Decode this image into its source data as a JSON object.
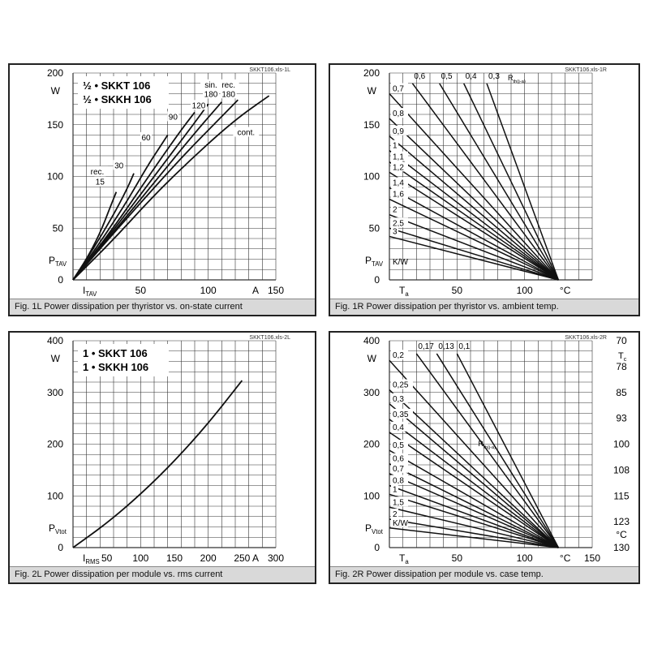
{
  "chart_data": [
    {
      "type": "line",
      "file_id": "SKKT106.xls-1L",
      "caption": "Fig. 1L Power dissipation per thyristor vs. on-state current",
      "device_labels": [
        "½ • SKKT 106",
        "½ • SKKH 106"
      ],
      "xlabel_main": "I",
      "xlabel_sub": "TAV",
      "ylabel_main": "P",
      "ylabel_sub": "TAV",
      "unit_x": "A",
      "unit_y": "W",
      "xlim": [
        0,
        150
      ],
      "ylim": [
        0,
        200
      ],
      "x_ticks": [
        50,
        100,
        150
      ],
      "y_ticks": [
        50,
        100,
        150,
        200
      ],
      "series": [
        {
          "name": "rec. 15",
          "points": [
            [
              0,
              0
            ],
            [
              10,
              20
            ],
            [
              20,
              45
            ],
            [
              28,
              72
            ],
            [
              32,
              85
            ]
          ]
        },
        {
          "name": "30",
          "points": [
            [
              0,
              0
            ],
            [
              15,
              30
            ],
            [
              30,
              63
            ],
            [
              40,
              88
            ],
            [
              45,
              103
            ]
          ]
        },
        {
          "name": "60",
          "points": [
            [
              0,
              0
            ],
            [
              20,
              36
            ],
            [
              40,
              76
            ],
            [
              55,
              110
            ],
            [
              65,
              130
            ],
            [
              70,
              140
            ]
          ]
        },
        {
          "name": "90",
          "points": [
            [
              0,
              0
            ],
            [
              30,
              50
            ],
            [
              60,
              108
            ],
            [
              80,
              145
            ],
            [
              90,
              162
            ]
          ]
        },
        {
          "name": "120",
          "points": [
            [
              0,
              0
            ],
            [
              30,
              48
            ],
            [
              60,
              100
            ],
            [
              90,
              152
            ],
            [
              100,
              170
            ]
          ]
        },
        {
          "name": "sin. 180",
          "points": [
            [
              0,
              0
            ],
            [
              30,
              46
            ],
            [
              60,
              94
            ],
            [
              90,
              142
            ],
            [
              110,
              172
            ]
          ]
        },
        {
          "name": "rec. 180",
          "points": [
            [
              0,
              0
            ],
            [
              40,
              60
            ],
            [
              80,
              118
            ],
            [
              110,
              158
            ],
            [
              122,
              174
            ]
          ]
        },
        {
          "name": "cont.",
          "points": [
            [
              0,
              0
            ],
            [
              30,
              39
            ],
            [
              60,
              82
            ],
            [
              90,
              120
            ],
            [
              120,
              155
            ],
            [
              145,
              178
            ]
          ]
        }
      ],
      "annotations": [
        {
          "text": "rec.",
          "at": [
            18,
            102
          ]
        },
        {
          "text": "15",
          "at": [
            20,
            92
          ]
        },
        {
          "text": "30",
          "at": [
            34,
            108
          ]
        },
        {
          "text": "60",
          "at": [
            54,
            135
          ]
        },
        {
          "text": "90",
          "at": [
            74,
            155
          ]
        },
        {
          "text": "120",
          "at": [
            93,
            166
          ]
        },
        {
          "text": "sin.",
          "at": [
            102,
            186
          ]
        },
        {
          "text": "180",
          "at": [
            102,
            177
          ]
        },
        {
          "text": "rec.",
          "at": [
            115,
            186
          ]
        },
        {
          "text": "180",
          "at": [
            115,
            177
          ]
        },
        {
          "text": "cont.",
          "at": [
            128,
            140
          ]
        }
      ]
    },
    {
      "type": "line",
      "file_id": "SKKT106.xls-1R",
      "caption": "Fig. 1R Power dissipation per thyristor vs. ambient temp.",
      "xlabel_main": "T",
      "xlabel_sub": "a",
      "ylabel_main": "P",
      "ylabel_sub": "TAV",
      "unit_x": "°C",
      "unit_y": "W",
      "rth_label_main": "R",
      "rth_label_sub": "th(j-a)",
      "rth_unit": "K/W",
      "xlim": [
        0,
        150
      ],
      "ylim": [
        0,
        200
      ],
      "x_ticks": [
        50,
        100
      ],
      "y_ticks": [
        50,
        100,
        150,
        200
      ],
      "convergence": [
        125,
        0
      ],
      "series": [
        {
          "name": "0,3",
          "start": [
            72,
            190
          ]
        },
        {
          "name": "0,4",
          "start": [
            55,
            190
          ]
        },
        {
          "name": "0,5",
          "start": [
            37,
            190
          ]
        },
        {
          "name": "0,6",
          "start": [
            17,
            190
          ]
        },
        {
          "name": "0,7",
          "start": [
            0,
            180
          ]
        },
        {
          "name": "0,8",
          "start": [
            0,
            156
          ]
        },
        {
          "name": "0,9",
          "start": [
            0,
            139
          ]
        },
        {
          "name": "1",
          "start": [
            0,
            125
          ]
        },
        {
          "name": "1,1",
          "start": [
            0,
            114
          ]
        },
        {
          "name": "1,2",
          "start": [
            0,
            104
          ]
        },
        {
          "name": "1,4",
          "start": [
            0,
            89
          ]
        },
        {
          "name": "1,6",
          "start": [
            0,
            78
          ]
        },
        {
          "name": "2",
          "start": [
            0,
            63
          ]
        },
        {
          "name": "2,5",
          "start": [
            0,
            50
          ]
        },
        {
          "name": "3",
          "start": [
            0,
            42
          ]
        }
      ]
    },
    {
      "type": "line",
      "file_id": "SKKT106.xls-2L",
      "caption": "Fig. 2L Power dissipation per module vs. rms current",
      "device_labels": [
        "1 • SKKT 106",
        "1 • SKKH 106"
      ],
      "xlabel_main": "I",
      "xlabel_sub": "RMS",
      "ylabel_main": "P",
      "ylabel_sub": "Vtot",
      "unit_x": "A",
      "unit_y": "W",
      "xlim": [
        0,
        300
      ],
      "ylim": [
        0,
        400
      ],
      "x_ticks": [
        50,
        100,
        150,
        200,
        250,
        300
      ],
      "y_ticks": [
        100,
        200,
        300,
        400
      ],
      "series": [
        {
          "name": "",
          "points": [
            [
              0,
              0
            ],
            [
              50,
              47
            ],
            [
              100,
              103
            ],
            [
              150,
              167
            ],
            [
              200,
              240
            ],
            [
              250,
              323
            ]
          ]
        }
      ]
    },
    {
      "type": "line",
      "file_id": "SKKT106.xls-2R",
      "caption": "Fig. 2R Power dissipation per module vs. case temp.",
      "xlabel_main": "T",
      "xlabel_sub": "a",
      "ylabel_main": "P",
      "ylabel_sub": "Vtot",
      "unit_x": "°C",
      "unit_y": "W",
      "rth_label_main": "R",
      "rth_label_sub": "th(j-a)",
      "rth_unit": "K/W",
      "right_label_main": "T",
      "right_label_sub": "c",
      "right_unit": "°C",
      "right_ticks": [
        "70",
        "78",
        "85",
        "93",
        "100",
        "108",
        "115",
        "123",
        "130"
      ],
      "xlim": [
        0,
        150
      ],
      "ylim": [
        0,
        400
      ],
      "x_ticks": [
        50,
        100,
        150
      ],
      "y_ticks": [
        100,
        200,
        300,
        400
      ],
      "convergence": [
        125,
        0
      ],
      "series": [
        {
          "name": "0,1",
          "start": [
            50,
            375
          ]
        },
        {
          "name": "0,13",
          "start": [
            35,
            375
          ]
        },
        {
          "name": "0,17",
          "start": [
            20,
            375
          ]
        },
        {
          "name": "0,2",
          "start": [
            0,
            362
          ]
        },
        {
          "name": "0,25",
          "start": [
            0,
            305
          ]
        },
        {
          "name": "0,3",
          "start": [
            0,
            278
          ]
        },
        {
          "name": "0,35",
          "start": [
            0,
            248
          ]
        },
        {
          "name": "0,4",
          "start": [
            0,
            223
          ]
        },
        {
          "name": "0,5",
          "start": [
            0,
            188
          ]
        },
        {
          "name": "0,6",
          "start": [
            0,
            162
          ]
        },
        {
          "name": "0,7",
          "start": [
            0,
            143
          ]
        },
        {
          "name": "0,8",
          "start": [
            0,
            120
          ]
        },
        {
          "name": "1",
          "start": [
            0,
            103
          ]
        },
        {
          "name": "1,5",
          "start": [
            0,
            78
          ]
        },
        {
          "name": "2",
          "start": [
            0,
            55
          ]
        },
        {
          "name": "K/W",
          "start": [
            0,
            38
          ]
        }
      ]
    }
  ]
}
